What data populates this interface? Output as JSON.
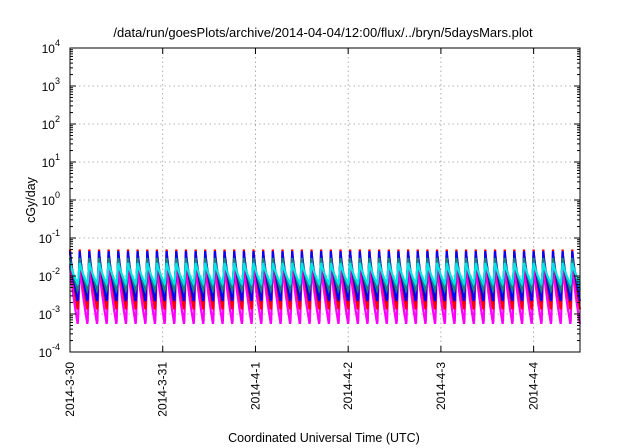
{
  "chart_data": {
    "type": "line",
    "title": "/data/run/goesPlots/archive/2014-04-04/12:00/flux/../bryn/5daysMars.plot",
    "xlabel": "Coordinated Universal Time (UTC)",
    "ylabel": "cGy/day",
    "y_scale": "log",
    "ylim": [
      0.0001,
      10000
    ],
    "y_ticks": [
      {
        "value": 0.0001,
        "base": "10",
        "exp": "-4"
      },
      {
        "value": 0.001,
        "base": "10",
        "exp": "-3"
      },
      {
        "value": 0.01,
        "base": "10",
        "exp": "-2"
      },
      {
        "value": 0.1,
        "base": "10",
        "exp": "-1"
      },
      {
        "value": 1,
        "base": "10",
        "exp": "0"
      },
      {
        "value": 10,
        "base": "10",
        "exp": "1"
      },
      {
        "value": 100,
        "base": "10",
        "exp": "2"
      },
      {
        "value": 1000,
        "base": "10",
        "exp": "3"
      },
      {
        "value": 10000,
        "base": "10",
        "exp": "4"
      }
    ],
    "x_range": [
      "2014-03-30T00:00",
      "2014-04-04T12:00"
    ],
    "x_ticks": [
      "2014-3-30",
      "2014-3-31",
      "2014-4-1",
      "2014-4-2",
      "2014-4-3",
      "2014-4-4"
    ],
    "grid": true,
    "cycle_hours": 2.5,
    "series": [
      {
        "color": "#ff00ff",
        "peak": 0.02,
        "trough": 0.0005
      },
      {
        "color": "#ff0000",
        "peak": 0.05,
        "trough": 0.0012
      },
      {
        "color": "#0000ff",
        "peak": 0.045,
        "trough": 0.002
      },
      {
        "color": "#1a7f7f",
        "peak": 0.03,
        "trough": 0.004
      },
      {
        "color": "#00e5e5",
        "peak": 0.022,
        "trough": 0.006
      }
    ]
  }
}
